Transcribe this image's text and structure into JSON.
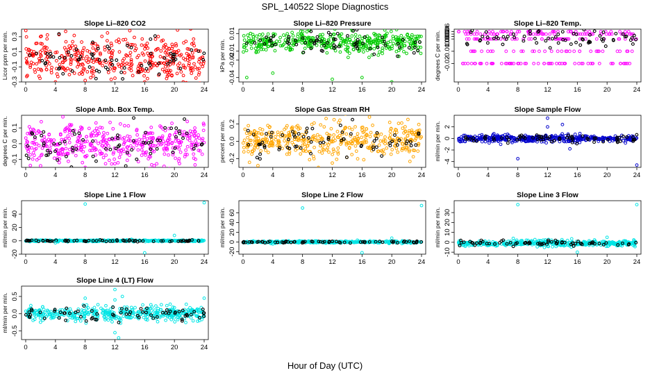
{
  "figure": {
    "title": "SPL_140522  Slope Diagnostics",
    "xlabel": "Hour of Day (UTC)"
  },
  "chart_data": [
    {
      "type": "scatter",
      "title": "Slope Li–820 CO2",
      "ylabel": "Licor ppm per min.",
      "xlim": [
        0,
        24
      ],
      "xticks": [
        0,
        4,
        8,
        12,
        16,
        20,
        24
      ],
      "ylim": [
        -0.3,
        0.4
      ],
      "yticks": [
        "-0.3",
        "-0.1",
        "0.1",
        "0.3"
      ],
      "yticks_v": [
        -0.3,
        -0.1,
        0.1,
        0.3
      ],
      "color": "#ff0000",
      "center": 0.0,
      "spread": 0.14,
      "outliers": [
        [
          4,
          -0.3
        ],
        [
          8,
          -0.28
        ],
        [
          12,
          -0.25
        ],
        [
          16,
          -0.3
        ],
        [
          14,
          0.38
        ],
        [
          11,
          0.35
        ],
        [
          2,
          0.3
        ]
      ]
    },
    {
      "type": "scatter",
      "title": "Slope Li–820 Pressure",
      "ylabel": "kPa per min.",
      "xlim": [
        0,
        24
      ],
      "xticks": [
        0,
        4,
        8,
        12,
        16,
        20,
        24
      ],
      "ylim": [
        -0.045,
        0.015
      ],
      "yticks": [
        "-0.04",
        "-0.02",
        "-0.01",
        "0.01"
      ],
      "yticks_v": [
        -0.04,
        -0.02,
        -0.01,
        0.01
      ],
      "color": "#00cc00",
      "center": 0.0,
      "spread": 0.006,
      "outliers": [
        [
          0.5,
          -0.04
        ],
        [
          4,
          -0.035
        ],
        [
          12,
          -0.042
        ],
        [
          16,
          -0.04
        ],
        [
          20,
          -0.045
        ],
        [
          1,
          0.01
        ]
      ]
    },
    {
      "type": "scatter",
      "title": "Slope Li–820 Temp.",
      "ylabel": "degrees C per min.",
      "xlim": [
        0,
        24
      ],
      "xticks": [
        0,
        4,
        8,
        12,
        16,
        20,
        24
      ],
      "ylim": [
        -0.035,
        0.008
      ],
      "yticks": [
        "-0.02",
        "-0.01",
        "0.000",
        "0.002",
        "0.004",
        "0.006"
      ],
      "yticks_v": [
        -0.02,
        -0.01,
        0.0,
        0.002,
        0.004,
        0.006
      ],
      "color": "#ff00ff",
      "center": 0.0,
      "spread": 0.0,
      "outliers": []
    },
    {
      "type": "scatter",
      "title": "Slope Amb. Box Temp.",
      "ylabel": "degrees C per min.",
      "xlim": [
        0,
        24
      ],
      "xticks": [
        0,
        4,
        8,
        12,
        16,
        20,
        24
      ],
      "ylim": [
        -0.15,
        0.18
      ],
      "yticks": [
        "-0.1",
        "0.0",
        "0.1"
      ],
      "yticks_v": [
        -0.1,
        0.0,
        0.1
      ],
      "color": "#ff00ff",
      "center": 0.0,
      "spread": 0.06,
      "outliers": [
        [
          5,
          0.17
        ],
        [
          8,
          -0.15
        ],
        [
          2,
          -0.14
        ]
      ]
    },
    {
      "type": "scatter",
      "title": "Slope Gas Stream RH",
      "ylabel": "percent per min.",
      "xlim": [
        0,
        24
      ],
      "xticks": [
        0,
        4,
        8,
        12,
        16,
        20,
        24
      ],
      "ylim": [
        -0.3,
        0.3
      ],
      "yticks": [
        "-0.2",
        "0.0",
        "0.2"
      ],
      "yticks_v": [
        -0.2,
        0.0,
        0.2
      ],
      "color": "#ffa500",
      "center": 0.0,
      "spread": 0.1,
      "outliers": [
        [
          2,
          -0.28
        ],
        [
          12,
          -0.25
        ],
        [
          17,
          0.28
        ]
      ]
    },
    {
      "type": "scatter",
      "title": "Slope Sample Flow",
      "ylabel": "ml/min per min.",
      "xlim": [
        0,
        24
      ],
      "xticks": [
        0,
        4,
        8,
        12,
        16,
        20,
        24
      ],
      "ylim": [
        -5,
        4
      ],
      "yticks": [
        "-4",
        "-2",
        "0",
        "2"
      ],
      "yticks_v": [
        -4,
        -2,
        0,
        2
      ],
      "color": "#0000cc",
      "center": 0.0,
      "spread": 0.3,
      "outliers": [
        [
          8,
          -3.5
        ],
        [
          12,
          3.5
        ],
        [
          14,
          2.4
        ],
        [
          15,
          -1.8
        ],
        [
          24,
          -4.6
        ],
        [
          12,
          2.0
        ]
      ]
    },
    {
      "type": "scatter",
      "title": "Slope Line 1 Flow",
      "ylabel": "ml/min per min.",
      "xlim": [
        0,
        24
      ],
      "xticks": [
        0,
        4,
        8,
        12,
        16,
        20,
        24
      ],
      "ylim": [
        -20,
        60
      ],
      "yticks": [
        "-20",
        "0",
        "20",
        "40"
      ],
      "yticks_v": [
        -20,
        0,
        20,
        40
      ],
      "color": "#00e5e5",
      "center": 0.0,
      "spread": 0.6,
      "outliers": [
        [
          8,
          55
        ],
        [
          24,
          57
        ],
        [
          16,
          -18
        ],
        [
          20,
          8
        ],
        [
          4,
          -3
        ]
      ]
    },
    {
      "type": "scatter",
      "title": "Slope Line 2 Flow",
      "ylabel": "ml/min per min.",
      "xlim": [
        0,
        24
      ],
      "xticks": [
        0,
        4,
        8,
        12,
        16,
        20,
        24
      ],
      "ylim": [
        -25,
        85
      ],
      "yticks": [
        "-20",
        "0",
        "20",
        "40",
        "60"
      ],
      "yticks_v": [
        -20,
        0,
        20,
        40,
        60
      ],
      "color": "#00e5e5",
      "center": 0.0,
      "spread": 1.0,
      "outliers": [
        [
          8,
          70
        ],
        [
          24,
          75
        ],
        [
          16,
          -22
        ],
        [
          20,
          8
        ],
        [
          4,
          -4
        ]
      ]
    },
    {
      "type": "scatter",
      "title": "Slope Line 3 Flow",
      "ylabel": "ml/min per min.",
      "xlim": [
        0,
        24
      ],
      "xticks": [
        0,
        4,
        8,
        12,
        16,
        20,
        24
      ],
      "ylim": [
        -12,
        42
      ],
      "yticks": [
        "-10",
        "0",
        "10",
        "20",
        "30"
      ],
      "yticks_v": [
        -10,
        0,
        10,
        20,
        30
      ],
      "color": "#00e5e5",
      "center": -1.0,
      "spread": 1.5,
      "outliers": [
        [
          8,
          38
        ],
        [
          24,
          38
        ],
        [
          16,
          -10
        ],
        [
          20,
          5
        ],
        [
          12,
          -4
        ]
      ]
    },
    {
      "type": "scatter",
      "title": "Slope Line 4 (LT) Flow",
      "ylabel": "ml/min per min.",
      "xlim": [
        0,
        24
      ],
      "xticks": [
        0,
        4,
        8,
        12,
        16,
        20,
        24
      ],
      "ylim": [
        -0.75,
        0.8
      ],
      "yticks": [
        "-0.5",
        "0.0",
        "0.5"
      ],
      "yticks_v": [
        -0.5,
        0.0,
        0.5
      ],
      "color": "#00e5e5",
      "center": 0.0,
      "spread": 0.1,
      "outliers": [
        [
          12,
          0.7
        ],
        [
          12,
          -0.55
        ],
        [
          12.5,
          -0.7
        ],
        [
          13,
          0.5
        ],
        [
          8,
          0.45
        ],
        [
          24,
          0.45
        ],
        [
          12,
          0.4
        ]
      ]
    }
  ]
}
